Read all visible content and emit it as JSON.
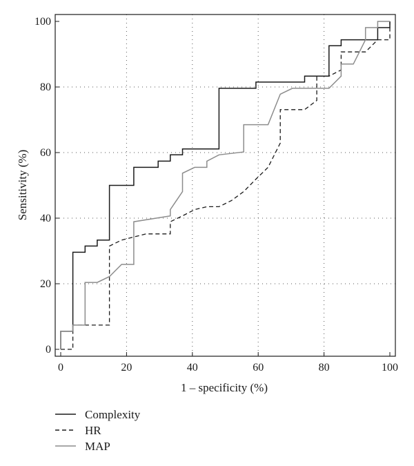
{
  "chart_data": {
    "type": "line",
    "xlabel": "1 – specificity (%)",
    "ylabel": "Sensitivity (%)",
    "xlim": [
      0,
      100
    ],
    "ylim": [
      0,
      100
    ],
    "xticks": [
      0,
      20,
      40,
      60,
      80,
      100
    ],
    "yticks": [
      0,
      20,
      40,
      60,
      80,
      100
    ],
    "grid": true,
    "legend_position": "bottom-left",
    "series": [
      {
        "name": "Complexity",
        "style": "solid",
        "color": "#1a1a1a",
        "points": [
          [
            0,
            0
          ],
          [
            0,
            5.5
          ],
          [
            3.7,
            5.5
          ],
          [
            3.7,
            29.6
          ],
          [
            7.4,
            29.6
          ],
          [
            7.4,
            31.5
          ],
          [
            11.1,
            31.5
          ],
          [
            11.1,
            33.3
          ],
          [
            14.8,
            33.3
          ],
          [
            14.8,
            50
          ],
          [
            22.2,
            50
          ],
          [
            22.2,
            55.5
          ],
          [
            29.6,
            55.5
          ],
          [
            29.6,
            57.4
          ],
          [
            33.3,
            57.4
          ],
          [
            33.3,
            59.3
          ],
          [
            37,
            59.3
          ],
          [
            37,
            61.1
          ],
          [
            48.1,
            61.1
          ],
          [
            48.1,
            79.6
          ],
          [
            59.3,
            79.6
          ],
          [
            59.3,
            81.5
          ],
          [
            74.1,
            81.5
          ],
          [
            74.1,
            83.3
          ],
          [
            81.5,
            83.3
          ],
          [
            81.5,
            92.6
          ],
          [
            85.2,
            92.6
          ],
          [
            85.2,
            94.4
          ],
          [
            96.3,
            94.4
          ],
          [
            96.3,
            98.1
          ],
          [
            100,
            98.1
          ],
          [
            100,
            100
          ]
        ]
      },
      {
        "name": "HR",
        "style": "dashed",
        "color": "#1a1a1a",
        "points": [
          [
            0,
            0
          ],
          [
            3.7,
            0
          ],
          [
            3.7,
            7.4
          ],
          [
            14.8,
            7.4
          ],
          [
            14.8,
            31.5
          ],
          [
            18.5,
            33.3
          ],
          [
            25.9,
            35.2
          ],
          [
            33.3,
            35.2
          ],
          [
            33.3,
            38.9
          ],
          [
            37,
            40.7
          ],
          [
            40.7,
            42.6
          ],
          [
            44.4,
            43.5
          ],
          [
            48.1,
            43.5
          ],
          [
            51.9,
            45.4
          ],
          [
            55.6,
            48.1
          ],
          [
            59.3,
            51.9
          ],
          [
            63,
            55.5
          ],
          [
            66.7,
            62.9
          ],
          [
            66.7,
            73.1
          ],
          [
            74.1,
            73.1
          ],
          [
            77.8,
            75.9
          ],
          [
            77.8,
            83.3
          ],
          [
            81.5,
            83.3
          ],
          [
            85.2,
            85.2
          ],
          [
            85.2,
            90.7
          ],
          [
            92.6,
            90.7
          ],
          [
            96.3,
            94.4
          ],
          [
            100,
            94.4
          ],
          [
            100,
            100
          ]
        ]
      },
      {
        "name": "MAP",
        "style": "solid",
        "color": "#8c8c8c",
        "points": [
          [
            0,
            0
          ],
          [
            0,
            5.5
          ],
          [
            3.7,
            5.5
          ],
          [
            3.7,
            7.4
          ],
          [
            7.4,
            7.4
          ],
          [
            7.4,
            20.4
          ],
          [
            11.1,
            20.4
          ],
          [
            14.8,
            22.2
          ],
          [
            18.5,
            25.9
          ],
          [
            22.2,
            25.9
          ],
          [
            22.2,
            38.9
          ],
          [
            33.3,
            40.7
          ],
          [
            33.3,
            42.6
          ],
          [
            37,
            48.1
          ],
          [
            37,
            53.7
          ],
          [
            40.7,
            55.5
          ],
          [
            44.4,
            55.5
          ],
          [
            44.4,
            57.4
          ],
          [
            48.1,
            59.3
          ],
          [
            55.6,
            60.2
          ],
          [
            55.6,
            68.5
          ],
          [
            63,
            68.5
          ],
          [
            66.7,
            77.8
          ],
          [
            70.4,
            79.6
          ],
          [
            81.5,
            79.6
          ],
          [
            85.2,
            83.3
          ],
          [
            85.2,
            87
          ],
          [
            88.9,
            87
          ],
          [
            92.6,
            94.4
          ],
          [
            92.6,
            98.1
          ],
          [
            96.3,
            98.1
          ],
          [
            96.3,
            100
          ],
          [
            100,
            100
          ]
        ]
      }
    ]
  }
}
